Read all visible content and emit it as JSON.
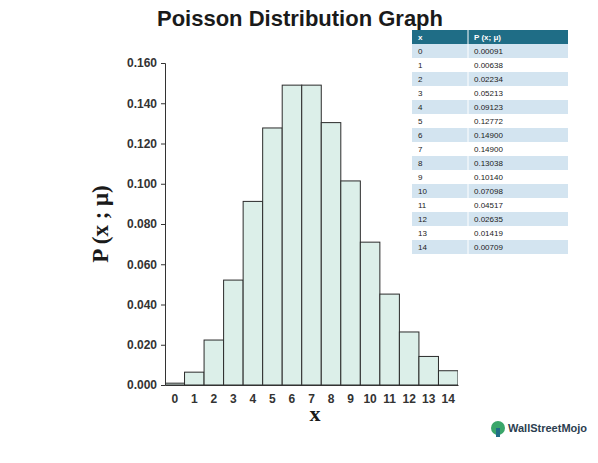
{
  "chart_data": {
    "type": "bar",
    "title": "Poisson Distribution Graph",
    "x_label": "x",
    "y_label": "P (x ; μ)",
    "categories": [
      "0",
      "1",
      "2",
      "3",
      "4",
      "5",
      "6",
      "7",
      "8",
      "9",
      "10",
      "11",
      "12",
      "13",
      "14"
    ],
    "values": [
      0.00091,
      0.00638,
      0.02234,
      0.05213,
      0.09123,
      0.12772,
      0.149,
      0.149,
      0.13038,
      0.1014,
      0.07098,
      0.04517,
      0.02635,
      0.01419,
      0.00709
    ],
    "value_labels": [
      "0.00091",
      "0.00638",
      "0.02234",
      "0.05213",
      "0.09123",
      "0.12772",
      "0.14900",
      "0.14900",
      "0.13038",
      "0.10140",
      "0.07098",
      "0.04517",
      "0.02635",
      "0.01419",
      "0.00709"
    ],
    "table_header": [
      "x",
      "P (x; μ)"
    ],
    "color": "#dcefe9",
    "ylim": [
      0,
      0.16
    ],
    "yticks": [
      {
        "value": 0,
        "label": "0.000"
      },
      {
        "value": 0.02,
        "label": "0.020"
      },
      {
        "value": 0.04,
        "label": "0.040"
      },
      {
        "value": 0.06,
        "label": "0.060"
      },
      {
        "value": 0.08,
        "label": "0.080"
      },
      {
        "value": 0.1,
        "label": "0.100"
      },
      {
        "value": 0.12,
        "label": "0.120"
      },
      {
        "value": 0.14,
        "label": "0.140"
      },
      {
        "value": 0.16,
        "label": "0.160"
      }
    ],
    "grid": false,
    "annotations": [
      "WallStreetMojo"
    ]
  }
}
